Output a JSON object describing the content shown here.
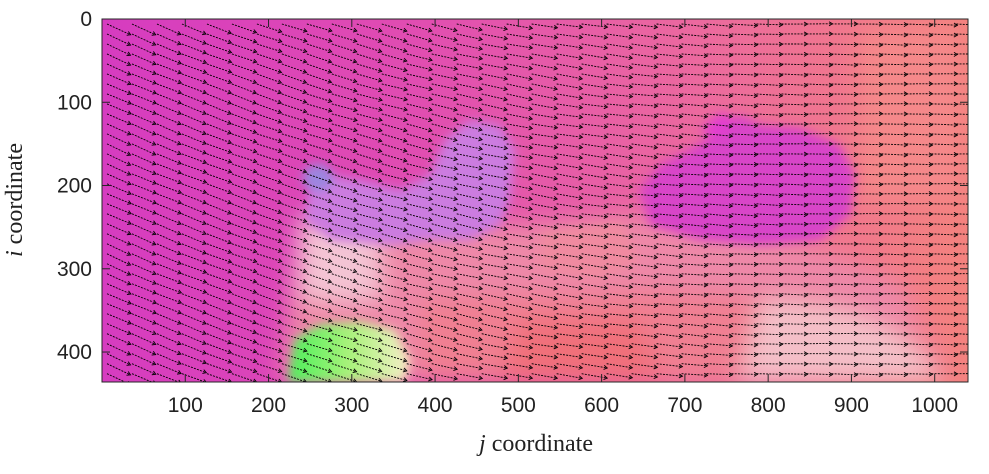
{
  "chart_data": {
    "type": "heatmap",
    "subtype": "optical-flow-field-with-quiver",
    "title": "",
    "xlabel_var": "j",
    "xlabel_text": "coordinate",
    "ylabel_var": "i",
    "ylabel_text": "coordinate",
    "xlim": [
      0,
      1040
    ],
    "ylim": [
      0,
      436
    ],
    "y_reversed": true,
    "grid": false,
    "x_ticks": [
      100,
      200,
      300,
      400,
      500,
      600,
      700,
      800,
      900,
      1000
    ],
    "x_tick_labels": [
      "100",
      "200",
      "300",
      "400",
      "500",
      "600",
      "700",
      "800",
      "900",
      "1000"
    ],
    "y_ticks": [
      0,
      100,
      200,
      300,
      400
    ],
    "y_tick_labels": [
      "0",
      "100",
      "200",
      "300",
      "400"
    ],
    "quiver": {
      "arrow_color": "#000000",
      "row_spacing": 12,
      "col_spacing": 30,
      "description_of_flow": "mostly rightward, tilting downward toward the left edge"
    },
    "colors": {
      "background_field": "#d84ab4",
      "magenta": "#e23cc8",
      "pink": "#ee7ab0",
      "salmon": "#f08a8c",
      "light_pink": "#f6c2cc",
      "violet": "#c879d6",
      "blue_violet": "#9c86e0",
      "green": "#5ef05c",
      "cream": "#f6efc8"
    }
  }
}
